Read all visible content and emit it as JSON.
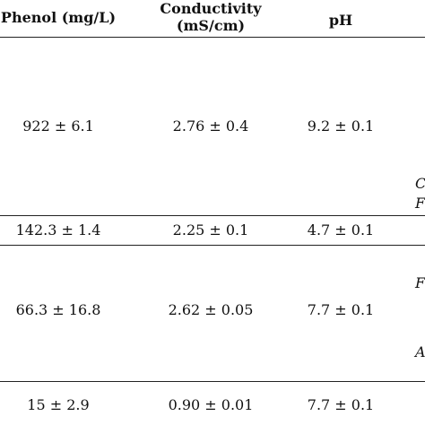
{
  "table": {
    "headers": {
      "phenol": "Phenol (mg/L)",
      "conductivity_line1": "Conductivity",
      "conductivity_line2": "(mS/cm)",
      "ph": "pH"
    },
    "rows": [
      {
        "phenol": "922 ± 6.1",
        "conductivity": "2.76 ± 0.4",
        "ph": "9.2 ± 0.1"
      },
      {
        "phenol": "142.3 ± 1.4",
        "conductivity": "2.25 ± 0.1",
        "ph": "4.7 ± 0.1"
      },
      {
        "phenol": "66.3 ± 16.8",
        "conductivity": "2.62 ± 0.05",
        "ph": "7.7 ± 0.1"
      },
      {
        "phenol": "15 ± 2.9",
        "conductivity": "0.90 ± 0.01",
        "ph": "7.7 ± 0.1"
      }
    ],
    "right_edge_fragments": [
      "C",
      "F",
      "F",
      "A"
    ]
  }
}
